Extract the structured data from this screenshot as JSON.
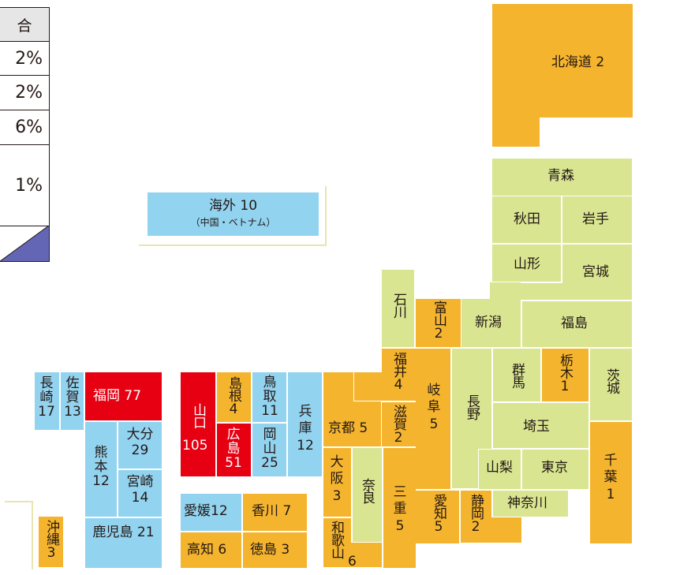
{
  "colors": {
    "green": "#d9e591",
    "yellow": "#f5b42d",
    "blue": "#92d3f0",
    "red": "#e60012",
    "table_header": "#e6e6e6",
    "table_bar": "#6266b5"
  },
  "table": {
    "header": "合",
    "rows": [
      "2%",
      "2%",
      "6%",
      "1%"
    ]
  },
  "overseas": {
    "label": "海外 10",
    "sub": "（中国・ベトナム）"
  },
  "prefectures": {
    "hokkaido": "北海道 2",
    "aomori": "青森",
    "akita": "秋田",
    "iwate": "岩手",
    "yamagata": "山形",
    "miyagi": "宮城",
    "ishikawa": "石川",
    "toyama": "富山2",
    "niigata": "新潟",
    "fukushima": "福島",
    "fukui": "福井4",
    "gunma": "群馬",
    "tochigi": "栃木1",
    "ibaraki": "茨城",
    "gifu": "岐阜 5",
    "nagano": "長野",
    "shiga": "滋賀2",
    "kyoto": "京都 5",
    "saitama": "埼玉",
    "chiba": "千葉 1",
    "yamanashi": "山梨",
    "tokyo": "東京",
    "kanagawa": "神奈川",
    "osaka": "大阪 3",
    "nara": "奈良",
    "mie": "三重 5",
    "aichi": "愛知5",
    "shizuoka": "静岡2",
    "wakayama_a": "和歌山",
    "wakayama_b": "6",
    "hyogo": "兵庫 12",
    "tottori": "鳥取11",
    "okayama": "岡山25",
    "shimane": "島根4",
    "hiroshima": "広島51",
    "yamaguchi_a": "山口",
    "yamaguchi_b": "105",
    "ehime": "愛媛12",
    "kagawa": "香川 7",
    "kochi": "高知 6",
    "tokushima": "徳島 3",
    "fukuoka": "福岡 77",
    "saga": "佐賀13",
    "nagasaki": "長崎17",
    "oita": "大分 29",
    "kumamoto": "熊本 12",
    "miyazaki": "宮崎 14",
    "kagoshima": "鹿児島 21",
    "okinawa": "沖縄3"
  }
}
